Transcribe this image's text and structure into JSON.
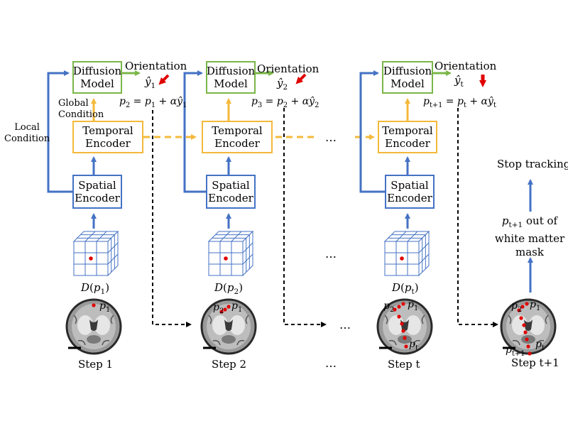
{
  "boxes": {
    "diffusion": [
      "Diffusion",
      "Model"
    ],
    "temporal": [
      "Temporal",
      "Encoder"
    ],
    "spatial": [
      "Spatial",
      "Encoder"
    ]
  },
  "labels": {
    "orientation": "Orientation",
    "local_condition": [
      "Local",
      "Condition"
    ],
    "global_condition": [
      "Global",
      "Condition"
    ],
    "stop_tracking": "Stop tracking",
    "out_of_mask_rest": [
      "out of",
      "white matter",
      "mask"
    ],
    "ellipsis": "…"
  },
  "steps": [
    {
      "step_label": "Step 1",
      "y_hat_sub": "1",
      "D_sub": "1",
      "update": {
        "lhs": "2",
        "rhs": "1",
        "y": "1"
      }
    },
    {
      "step_label": "Step 2",
      "y_hat_sub": "2",
      "D_sub": "2",
      "update": {
        "lhs": "3",
        "rhs": "2",
        "y": "2"
      }
    },
    {
      "step_label": "Step t",
      "y_hat_sub": "t",
      "D_sub": "t",
      "update": {
        "lhs": "t+1",
        "rhs": "t",
        "y": "t"
      }
    },
    {
      "step_label": "Step t+1"
    }
  ],
  "brain_point_labels": {
    "p1": "1",
    "p2": "2",
    "pt": "t",
    "pt1": "t+1"
  },
  "colors": {
    "blue": "#4472c4",
    "gold": "#f4b93a",
    "green": "#7ab648",
    "red": "#e00000",
    "black": "#000000"
  }
}
